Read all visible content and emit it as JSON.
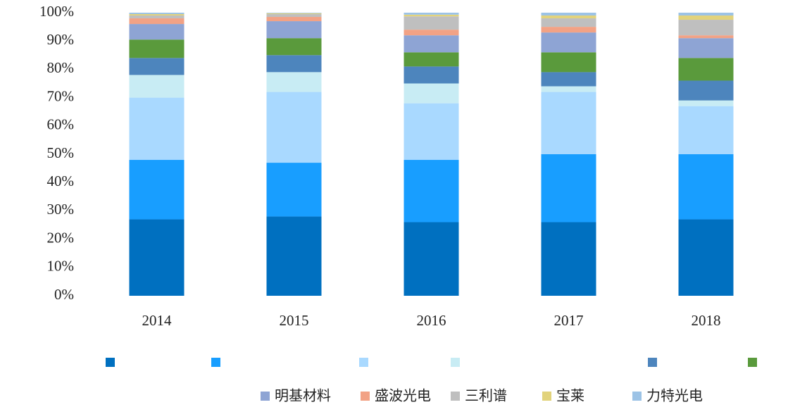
{
  "chart_data": {
    "type": "stacked_bar",
    "categories": [
      "2014",
      "2015",
      "2016",
      "2017",
      "2018"
    ],
    "ylim": [
      0,
      100
    ],
    "yticks": [
      {
        "value": 0,
        "label": "0%"
      },
      {
        "value": 10,
        "label": "10%"
      },
      {
        "value": 20,
        "label": "20%"
      },
      {
        "value": 30,
        "label": "30%"
      },
      {
        "value": 40,
        "label": "40%"
      },
      {
        "value": 50,
        "label": "50%"
      },
      {
        "value": 60,
        "label": "60%"
      },
      {
        "value": 70,
        "label": "70%"
      },
      {
        "value": 80,
        "label": "80%"
      },
      {
        "value": 90,
        "label": "90%"
      },
      {
        "value": 100,
        "label": "100%"
      }
    ],
    "series": [
      {
        "name": null,
        "color": "#0070c0",
        "values": [
          27,
          28,
          26,
          26,
          27
        ]
      },
      {
        "name": null,
        "color": "#189eff",
        "values": [
          21,
          19,
          22,
          24,
          23
        ]
      },
      {
        "name": null,
        "color": "#a9d9ff",
        "values": [
          22,
          25,
          20,
          22,
          17
        ]
      },
      {
        "name": null,
        "color": "#c8ecf4",
        "values": [
          8,
          7,
          7,
          2,
          2
        ]
      },
      {
        "name": null,
        "color": "#4d85bd",
        "values": [
          6,
          6,
          6,
          5,
          7
        ]
      },
      {
        "name": null,
        "color": "#5a9a3c",
        "values": [
          6.5,
          6,
          5,
          7,
          8
        ]
      },
      {
        "name": "明基材料",
        "color": "#8ea4d4",
        "values": [
          5.5,
          6,
          6,
          7,
          7
        ]
      },
      {
        "name": "盛波光电",
        "color": "#f2a285",
        "values": [
          2,
          1.5,
          2,
          2,
          1
        ]
      },
      {
        "name": "三利谱",
        "color": "#bfbfbf",
        "values": [
          1,
          1,
          4.7,
          3,
          5.5
        ]
      },
      {
        "name": "宝莱",
        "color": "#e2d37c",
        "values": [
          0.5,
          0.3,
          0.6,
          1,
          1.5
        ]
      },
      {
        "name": "力特光电",
        "color": "#9cc3e6",
        "values": [
          0.5,
          0.2,
          0.7,
          1,
          1
        ]
      }
    ]
  }
}
